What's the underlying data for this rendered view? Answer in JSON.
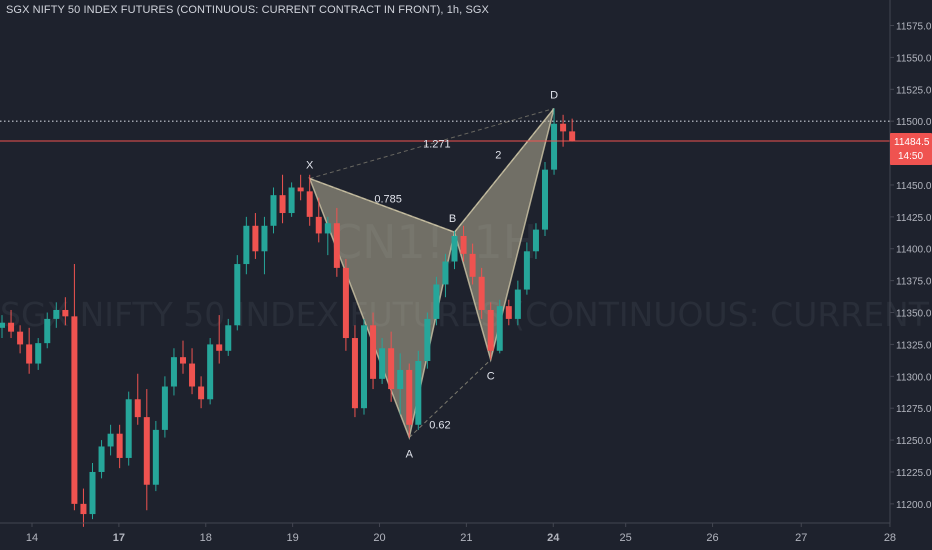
{
  "header": {
    "title": "SGX NIFTY 50 INDEX FUTURES (CONTINUOUS: CURRENT CONTRACT IN FRONT), 1h, SGX"
  },
  "watermark": {
    "symbol": "CN1!, 1H",
    "name": "SGX NIFTY 50 INDEX FUTURES (CONTINUOUS: CURRENT CONTRACT IN FRONT)"
  },
  "colors": {
    "background": "#1e222d",
    "up": "#26a69a",
    "down": "#ef5350",
    "pattern_fill": "#d8cfae",
    "axis_text": "#b2b5be",
    "price_line": "#ef5350",
    "price_label_bg": "#ef5350"
  },
  "price_label": {
    "value": "11484.5",
    "countdown": "14:50"
  },
  "chart_data": {
    "type": "candlestick",
    "title": "SGX NIFTY 50 INDEX FUTURES (CONTINUOUS: CURRENT CONTRACT IN FRONT), 1h, SGX",
    "interval": "1h",
    "y_axis": {
      "position": "right",
      "range": [
        11185,
        11595
      ],
      "ticks": [
        "11200.0",
        "11225.0",
        "11250.0",
        "11275.0",
        "11300.0",
        "11325.0",
        "11350.0",
        "11375.0",
        "11400.0",
        "11425.0",
        "11450.0",
        "11475.0",
        "11500.0",
        "11525.0",
        "11550.0",
        "11575.0"
      ]
    },
    "x_axis": {
      "ticks": [
        {
          "label": "14",
          "bold": false,
          "pos": 0.0
        },
        {
          "label": "17",
          "bold": true,
          "pos": 9.6
        },
        {
          "label": "18",
          "bold": false,
          "pos": 19.2
        },
        {
          "label": "19",
          "bold": false,
          "pos": 28.8
        },
        {
          "label": "20",
          "bold": false,
          "pos": 38.4
        },
        {
          "label": "21",
          "bold": false,
          "pos": 48.0
        },
        {
          "label": "24",
          "bold": true,
          "pos": 57.6
        },
        {
          "label": "25",
          "bold": false,
          "pos": 65.6
        },
        {
          "label": "26",
          "bold": false,
          "pos": 75.2
        },
        {
          "label": "27",
          "bold": false,
          "pos": 85.0
        },
        {
          "label": "28",
          "bold": false,
          "pos": 94.8
        }
      ]
    },
    "current_price": 11484.5,
    "dotted_level": 11500,
    "harmonic_pattern": {
      "points": [
        {
          "label": "X",
          "bar": 34,
          "price": 11455
        },
        {
          "label": "A",
          "bar": 45,
          "price": 11252
        },
        {
          "label": "B",
          "bar": 50,
          "price": 11413
        },
        {
          "label": "C",
          "bar": 54,
          "price": 11313
        },
        {
          "label": "D",
          "bar": 61,
          "price": 11510
        }
      ],
      "ratios": [
        {
          "label": "0.785"
        },
        {
          "label": "0.62"
        },
        {
          "label": "2"
        },
        {
          "label": "1.271"
        }
      ]
    },
    "candles": [
      {
        "o": 11338,
        "h": 11348,
        "l": 11330,
        "c": 11342
      },
      {
        "o": 11342,
        "h": 11352,
        "l": 11330,
        "c": 11335
      },
      {
        "o": 11335,
        "h": 11340,
        "l": 11318,
        "c": 11325
      },
      {
        "o": 11325,
        "h": 11338,
        "l": 11302,
        "c": 11310
      },
      {
        "o": 11310,
        "h": 11330,
        "l": 11305,
        "c": 11326
      },
      {
        "o": 11326,
        "h": 11350,
        "l": 11322,
        "c": 11345
      },
      {
        "o": 11345,
        "h": 11358,
        "l": 11338,
        "c": 11352
      },
      {
        "o": 11352,
        "h": 11362,
        "l": 11340,
        "c": 11347
      },
      {
        "o": 11347,
        "h": 11388,
        "l": 11195,
        "c": 11200
      },
      {
        "o": 11200,
        "h": 11212,
        "l": 11182,
        "c": 11192
      },
      {
        "o": 11192,
        "h": 11232,
        "l": 11188,
        "c": 11225
      },
      {
        "o": 11225,
        "h": 11250,
        "l": 11220,
        "c": 11245
      },
      {
        "o": 11245,
        "h": 11262,
        "l": 11238,
        "c": 11255
      },
      {
        "o": 11255,
        "h": 11262,
        "l": 11228,
        "c": 11236
      },
      {
        "o": 11236,
        "h": 11288,
        "l": 11230,
        "c": 11282
      },
      {
        "o": 11282,
        "h": 11302,
        "l": 11262,
        "c": 11268
      },
      {
        "o": 11268,
        "h": 11290,
        "l": 11195,
        "c": 11215
      },
      {
        "o": 11215,
        "h": 11265,
        "l": 11210,
        "c": 11258
      },
      {
        "o": 11258,
        "h": 11300,
        "l": 11252,
        "c": 11292
      },
      {
        "o": 11292,
        "h": 11322,
        "l": 11285,
        "c": 11315
      },
      {
        "o": 11315,
        "h": 11328,
        "l": 11302,
        "c": 11310
      },
      {
        "o": 11310,
        "h": 11322,
        "l": 11286,
        "c": 11292
      },
      {
        "o": 11292,
        "h": 11300,
        "l": 11275,
        "c": 11282
      },
      {
        "o": 11282,
        "h": 11330,
        "l": 11278,
        "c": 11325
      },
      {
        "o": 11325,
        "h": 11348,
        "l": 11310,
        "c": 11320
      },
      {
        "o": 11320,
        "h": 11345,
        "l": 11316,
        "c": 11340
      },
      {
        "o": 11340,
        "h": 11395,
        "l": 11336,
        "c": 11388
      },
      {
        "o": 11388,
        "h": 11425,
        "l": 11380,
        "c": 11418
      },
      {
        "o": 11418,
        "h": 11428,
        "l": 11392,
        "c": 11398
      },
      {
        "o": 11398,
        "h": 11425,
        "l": 11380,
        "c": 11418
      },
      {
        "o": 11418,
        "h": 11448,
        "l": 11412,
        "c": 11442
      },
      {
        "o": 11442,
        "h": 11458,
        "l": 11420,
        "c": 11428
      },
      {
        "o": 11428,
        "h": 11452,
        "l": 11425,
        "c": 11448
      },
      {
        "o": 11448,
        "h": 11458,
        "l": 11438,
        "c": 11445
      },
      {
        "o": 11445,
        "h": 11458,
        "l": 11418,
        "c": 11425
      },
      {
        "o": 11425,
        "h": 11440,
        "l": 11405,
        "c": 11412
      },
      {
        "o": 11412,
        "h": 11425,
        "l": 11395,
        "c": 11420
      },
      {
        "o": 11420,
        "h": 11432,
        "l": 11378,
        "c": 11385
      },
      {
        "o": 11385,
        "h": 11392,
        "l": 11320,
        "c": 11330
      },
      {
        "o": 11330,
        "h": 11340,
        "l": 11268,
        "c": 11275
      },
      {
        "o": 11275,
        "h": 11345,
        "l": 11270,
        "c": 11340
      },
      {
        "o": 11340,
        "h": 11350,
        "l": 11290,
        "c": 11298
      },
      {
        "o": 11298,
        "h": 11330,
        "l": 11294,
        "c": 11322
      },
      {
        "o": 11322,
        "h": 11335,
        "l": 11280,
        "c": 11290
      },
      {
        "o": 11290,
        "h": 11318,
        "l": 11270,
        "c": 11305
      },
      {
        "o": 11305,
        "h": 11310,
        "l": 11252,
        "c": 11262
      },
      {
        "o": 11262,
        "h": 11320,
        "l": 11258,
        "c": 11312
      },
      {
        "o": 11312,
        "h": 11350,
        "l": 11306,
        "c": 11345
      },
      {
        "o": 11345,
        "h": 11378,
        "l": 11340,
        "c": 11372
      },
      {
        "o": 11372,
        "h": 11396,
        "l": 11362,
        "c": 11390
      },
      {
        "o": 11390,
        "h": 11414,
        "l": 11384,
        "c": 11410
      },
      {
        "o": 11410,
        "h": 11418,
        "l": 11390,
        "c": 11396
      },
      {
        "o": 11396,
        "h": 11404,
        "l": 11372,
        "c": 11378
      },
      {
        "o": 11378,
        "h": 11385,
        "l": 11345,
        "c": 11352
      },
      {
        "o": 11352,
        "h": 11358,
        "l": 11313,
        "c": 11320
      },
      {
        "o": 11320,
        "h": 11360,
        "l": 11318,
        "c": 11355
      },
      {
        "o": 11355,
        "h": 11360,
        "l": 11340,
        "c": 11345
      },
      {
        "o": 11345,
        "h": 11375,
        "l": 11340,
        "c": 11368
      },
      {
        "o": 11368,
        "h": 11405,
        "l": 11364,
        "c": 11398
      },
      {
        "o": 11398,
        "h": 11420,
        "l": 11392,
        "c": 11415
      },
      {
        "o": 11415,
        "h": 11468,
        "l": 11410,
        "c": 11462
      },
      {
        "o": 11462,
        "h": 11510,
        "l": 11458,
        "c": 11498
      },
      {
        "o": 11498,
        "h": 11505,
        "l": 11480,
        "c": 11492
      },
      {
        "o": 11492,
        "h": 11502,
        "l": 11484,
        "c": 11484.5
      }
    ]
  }
}
